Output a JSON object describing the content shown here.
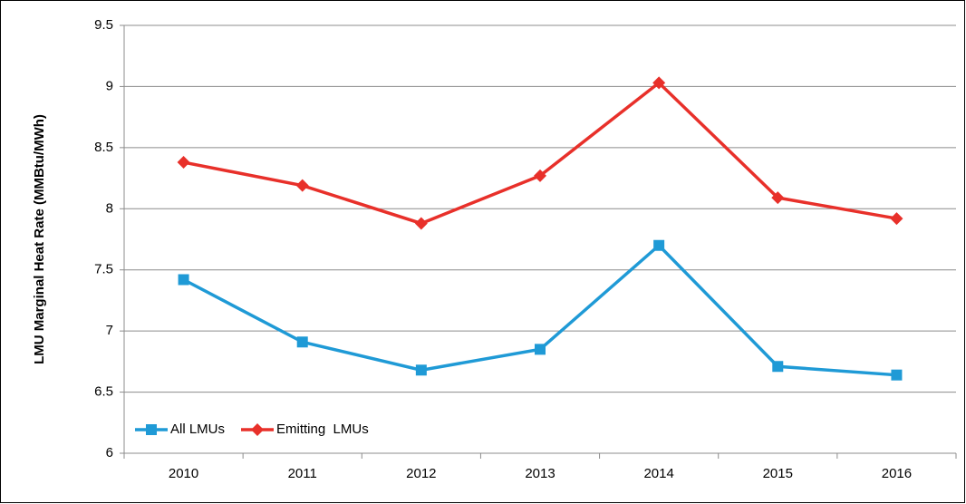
{
  "chart_data": {
    "type": "line",
    "y_label": "LMU Marginal Heat Rate (MMBtu/MWh)",
    "categories": [
      "2010",
      "2011",
      "2012",
      "2013",
      "2014",
      "2015",
      "2016"
    ],
    "series": [
      {
        "name": "All LMUs",
        "color": "#1f9ad6",
        "marker": "square",
        "values": [
          7.42,
          6.91,
          6.68,
          6.85,
          7.7,
          6.71,
          6.64
        ]
      },
      {
        "name": "Emitting  LMUs",
        "color": "#e8302a",
        "marker": "diamond",
        "values": [
          8.38,
          8.19,
          7.88,
          8.27,
          9.03,
          8.09,
          7.92
        ]
      }
    ],
    "ylim": [
      6,
      9.5
    ],
    "yticks": [
      6,
      6.5,
      7,
      7.5,
      8,
      8.5,
      9,
      9.5
    ],
    "grid": true,
    "legend": "lower-left"
  }
}
